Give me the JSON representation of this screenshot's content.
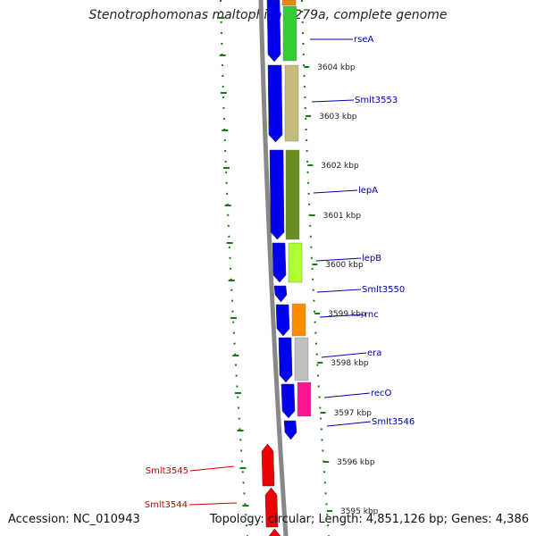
{
  "header": {
    "title": "Stenotrophomonas maltophilia K279a, complete genome"
  },
  "footer": {
    "accession": "Accession: NC_010943",
    "summary": "Topology: circular; Length: 4,851,126 bp; Genes: 4,386"
  },
  "colors": {
    "backbone": "#888888",
    "forward_gene": "#0000ee",
    "reverse_gene": "#ee0000",
    "forward_label": "#0000aa",
    "reverse_label": "#cc0000",
    "tick": "#1a7a1a"
  },
  "chart_data": {
    "type": "genome-map",
    "scale_unit": "kbp",
    "scale_ticks": [
      "3604 kbp",
      "3603 kbp",
      "3602 kbp",
      "3601 kbp",
      "3600 kbp",
      "3599 kbp",
      "3598 kbp",
      "3597 kbp",
      "3596 kbp",
      "3595 kbp"
    ],
    "labelled_genes": [
      {
        "name": "rseA",
        "strand": "forward"
      },
      {
        "name": "Smlt3553",
        "strand": "forward"
      },
      {
        "name": "lepA",
        "strand": "forward"
      },
      {
        "name": "lepB",
        "strand": "forward"
      },
      {
        "name": "Smlt3550",
        "strand": "forward"
      },
      {
        "name": "rnc",
        "strand": "forward"
      },
      {
        "name": "era",
        "strand": "forward"
      },
      {
        "name": "recO",
        "strand": "forward"
      },
      {
        "name": "Smlt3546",
        "strand": "forward"
      },
      {
        "name": "Smlt3545",
        "strand": "reverse"
      },
      {
        "name": "Smlt3544",
        "strand": "reverse"
      }
    ],
    "cog_colors": [
      "#ee8800",
      "#33cc33",
      "#c4bc78",
      "#6b8e23",
      "#adff2f",
      "#ff8c00",
      "#c0c0c0",
      "#ff1493"
    ]
  }
}
